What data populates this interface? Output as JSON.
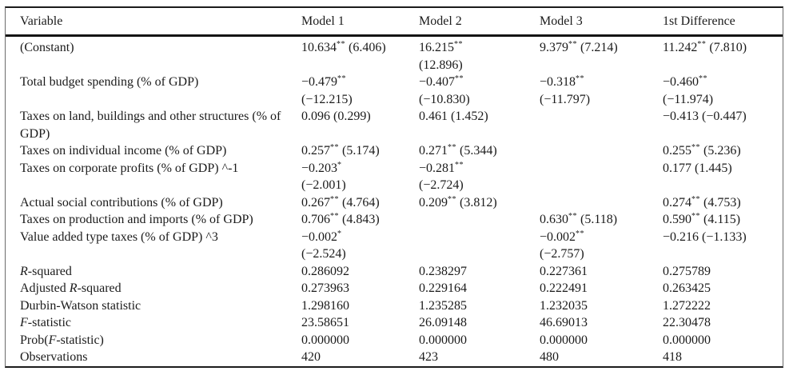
{
  "table": {
    "columns": [
      "Variable",
      "Model 1",
      "Model 2",
      "Model 3",
      "1st Difference"
    ],
    "rows": [
      {
        "label": [
          {
            "text": "(Constant)"
          }
        ],
        "cells": [
          {
            "value": "10.634",
            "sig": "**",
            "stat": "(6.406)",
            "stat_newline": false
          },
          {
            "value": "16.215",
            "sig": "**",
            "stat": "(12.896)",
            "stat_newline": true
          },
          {
            "value": "9.379",
            "sig": "**",
            "stat": "(7.214)",
            "stat_newline": false
          },
          {
            "value": "11.242",
            "sig": "**",
            "stat": "(7.810)",
            "stat_newline": false
          }
        ]
      },
      {
        "label": [
          {
            "text": "Total budget spending (% of GDP)"
          }
        ],
        "cells": [
          {
            "value": "−0.479",
            "sig": "**",
            "stat": "(−12.215)",
            "stat_newline": true
          },
          {
            "value": "−0.407",
            "sig": "**",
            "stat": "(−10.830)",
            "stat_newline": true
          },
          {
            "value": "−0.318",
            "sig": "**",
            "stat": "(−11.797)",
            "stat_newline": true
          },
          {
            "value": "−0.460",
            "sig": "**",
            "stat": "(−11.974)",
            "stat_newline": true
          }
        ]
      },
      {
        "label": [
          {
            "text": "Taxes on land, buildings and other structures (% of GDP)"
          }
        ],
        "cells": [
          {
            "value": "0.096",
            "sig": "",
            "stat": "(0.299)",
            "stat_newline": false
          },
          {
            "value": "0.461",
            "sig": "",
            "stat": "(1.452)",
            "stat_newline": false
          },
          null,
          {
            "value": "−0.413",
            "sig": "",
            "stat": "(−0.447)",
            "stat_newline": false
          }
        ]
      },
      {
        "label": [
          {
            "text": "Taxes on individual income (% of GDP)"
          }
        ],
        "cells": [
          {
            "value": "0.257",
            "sig": "**",
            "stat": "(5.174)",
            "stat_newline": false
          },
          {
            "value": "0.271",
            "sig": "**",
            "stat": "(5.344)",
            "stat_newline": false
          },
          null,
          {
            "value": "0.255",
            "sig": "**",
            "stat": "(5.236)",
            "stat_newline": false
          }
        ]
      },
      {
        "label": [
          {
            "text": "Taxes on corporate profits (% of GDP) ^-1"
          }
        ],
        "cells": [
          {
            "value": "−0.203",
            "sig": "*",
            "stat": "(−2.001)",
            "stat_newline": true
          },
          {
            "value": "−0.281",
            "sig": "**",
            "stat": "(−2.724)",
            "stat_newline": true
          },
          null,
          {
            "value": "0.177",
            "sig": "",
            "stat": "(1.445)",
            "stat_newline": false
          }
        ]
      },
      {
        "label": [
          {
            "text": "Actual social contributions (% of GDP)"
          }
        ],
        "cells": [
          {
            "value": "0.267",
            "sig": "**",
            "stat": "(4.764)",
            "stat_newline": false
          },
          {
            "value": "0.209",
            "sig": "**",
            "stat": "(3.812)",
            "stat_newline": false
          },
          null,
          {
            "value": "0.274",
            "sig": "**",
            "stat": "(4.753)",
            "stat_newline": false
          }
        ]
      },
      {
        "label": [
          {
            "text": "Taxes on production and imports (% of GDP)"
          }
        ],
        "cells": [
          {
            "value": "0.706",
            "sig": "**",
            "stat": "(4.843)",
            "stat_newline": false
          },
          null,
          {
            "value": "0.630",
            "sig": "**",
            "stat": "(5.118)",
            "stat_newline": false
          },
          {
            "value": "0.590",
            "sig": "**",
            "stat": "(4.115)",
            "stat_newline": false
          }
        ]
      },
      {
        "label": [
          {
            "text": "Value added type taxes (% of GDP) ^3"
          }
        ],
        "cells": [
          {
            "value": "−0.002",
            "sig": "*",
            "stat": "(−2.524)",
            "stat_newline": true
          },
          null,
          {
            "value": "−0.002",
            "sig": "**",
            "stat": "(−2.757)",
            "stat_newline": true
          },
          {
            "value": "−0.216",
            "sig": "",
            "stat": "(−1.133)",
            "stat_newline": false
          }
        ]
      },
      {
        "label": [
          {
            "text": "R",
            "italic": true
          },
          {
            "text": "-squared"
          }
        ],
        "cells": [
          {
            "value": "0.286092"
          },
          {
            "value": "0.238297"
          },
          {
            "value": "0.227361"
          },
          {
            "value": "0.275789"
          }
        ]
      },
      {
        "label": [
          {
            "text": "Adjusted "
          },
          {
            "text": "R",
            "italic": true
          },
          {
            "text": "-squared"
          }
        ],
        "cells": [
          {
            "value": "0.273963"
          },
          {
            "value": "0.229164"
          },
          {
            "value": "0.222491"
          },
          {
            "value": "0.263425"
          }
        ]
      },
      {
        "label": [
          {
            "text": "Durbin-Watson statistic"
          }
        ],
        "cells": [
          {
            "value": "1.298160"
          },
          {
            "value": "1.235285"
          },
          {
            "value": "1.232035"
          },
          {
            "value": "1.272222"
          }
        ]
      },
      {
        "label": [
          {
            "text": "F",
            "italic": true
          },
          {
            "text": "-statistic"
          }
        ],
        "cells": [
          {
            "value": "23.58651"
          },
          {
            "value": "26.09148"
          },
          {
            "value": "46.69013"
          },
          {
            "value": "22.30478"
          }
        ]
      },
      {
        "label": [
          {
            "text": "Prob("
          },
          {
            "text": "F",
            "italic": true
          },
          {
            "text": "-statistic)"
          }
        ],
        "cells": [
          {
            "value": "0.000000"
          },
          {
            "value": "0.000000"
          },
          {
            "value": "0.000000"
          },
          {
            "value": "0.000000"
          }
        ]
      },
      {
        "label": [
          {
            "text": "Observations"
          }
        ],
        "cells": [
          {
            "value": "420"
          },
          {
            "value": "423"
          },
          {
            "value": "480"
          },
          {
            "value": "418"
          }
        ]
      }
    ]
  }
}
